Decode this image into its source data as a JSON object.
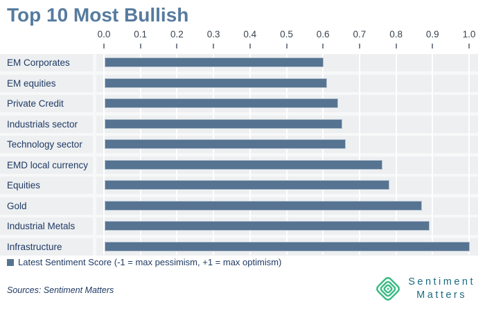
{
  "title": "Top 10 Most Bullish",
  "legend": {
    "label": "Latest Sentiment Score (-1 = max pessimism, +1 = max optimism)"
  },
  "footer": {
    "sources": "Sources: Sentiment Matters",
    "logo_line1": "Sentiment",
    "logo_line2": "Matters"
  },
  "colors": {
    "title": "#567b9e",
    "bar_fill": "#567492",
    "bar_border": "#b6c2cd",
    "row_band": "#edeff1",
    "label_text": "#1f3a63",
    "axis_text": "#39424e",
    "logo_green": "#3cbb84",
    "logo_text": "#1a6a80"
  },
  "chart_data": {
    "type": "bar",
    "orientation": "horizontal",
    "title": "Top 10 Most Bullish",
    "series_name": "Latest Sentiment Score",
    "categories": [
      "EM Corporates",
      "EM equities",
      "Private Credit",
      "Industrials sector",
      "Technology sector",
      "EMD local currency",
      "Equities",
      "Gold",
      "Industrial Metals",
      "Infrastructure"
    ],
    "values": [
      0.6,
      0.61,
      0.64,
      0.65,
      0.66,
      0.76,
      0.78,
      0.87,
      0.89,
      1.0
    ],
    "xlim": [
      0.0,
      1.0
    ],
    "xticks": [
      0.0,
      0.1,
      0.2,
      0.3,
      0.4,
      0.5,
      0.6,
      0.7,
      0.8,
      0.9,
      1.0
    ],
    "axis_position": "top",
    "grid": true,
    "legend_position": "bottom"
  }
}
